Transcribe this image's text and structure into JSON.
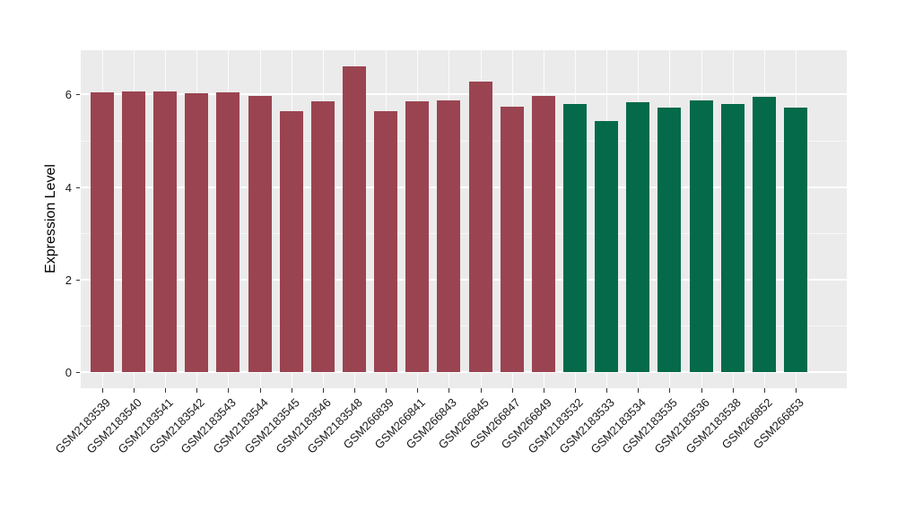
{
  "chart_data": {
    "type": "bar",
    "title": "",
    "xlabel": "",
    "ylabel": "Expression Level",
    "ylim": [
      0,
      6.96
    ],
    "yticks_major": [
      0,
      2,
      4,
      6
    ],
    "yticks_minor": [
      1,
      3,
      5
    ],
    "grid": "on",
    "legend": "none",
    "panel_background": "#EBEBEB",
    "gridline_color": "#FFFFFF",
    "categories": [
      "GSM2183539",
      "GSM2183540",
      "GSM2183541",
      "GSM2183542",
      "GSM2183543",
      "GSM2183544",
      "GSM2183545",
      "GSM2183546",
      "GSM2183548",
      "GSM266839",
      "GSM266841",
      "GSM266843",
      "GSM266845",
      "GSM266847",
      "GSM266849",
      "GSM2183532",
      "GSM2183533",
      "GSM2183534",
      "GSM2183535",
      "GSM2183536",
      "GSM2183538",
      "GSM266852",
      "GSM266853"
    ],
    "values": [
      6.04,
      6.07,
      6.07,
      6.03,
      6.04,
      5.97,
      5.64,
      5.85,
      6.61,
      5.64,
      5.86,
      5.88,
      6.28,
      5.73,
      5.97,
      5.8,
      5.43,
      5.84,
      5.72,
      5.88,
      5.79,
      5.95,
      5.72
    ],
    "bar_group_index": [
      0,
      0,
      0,
      0,
      0,
      0,
      0,
      0,
      0,
      0,
      0,
      0,
      0,
      0,
      0,
      1,
      1,
      1,
      1,
      1,
      1,
      1,
      1
    ],
    "palette": [
      "#9B4451",
      "#046A4A"
    ]
  }
}
